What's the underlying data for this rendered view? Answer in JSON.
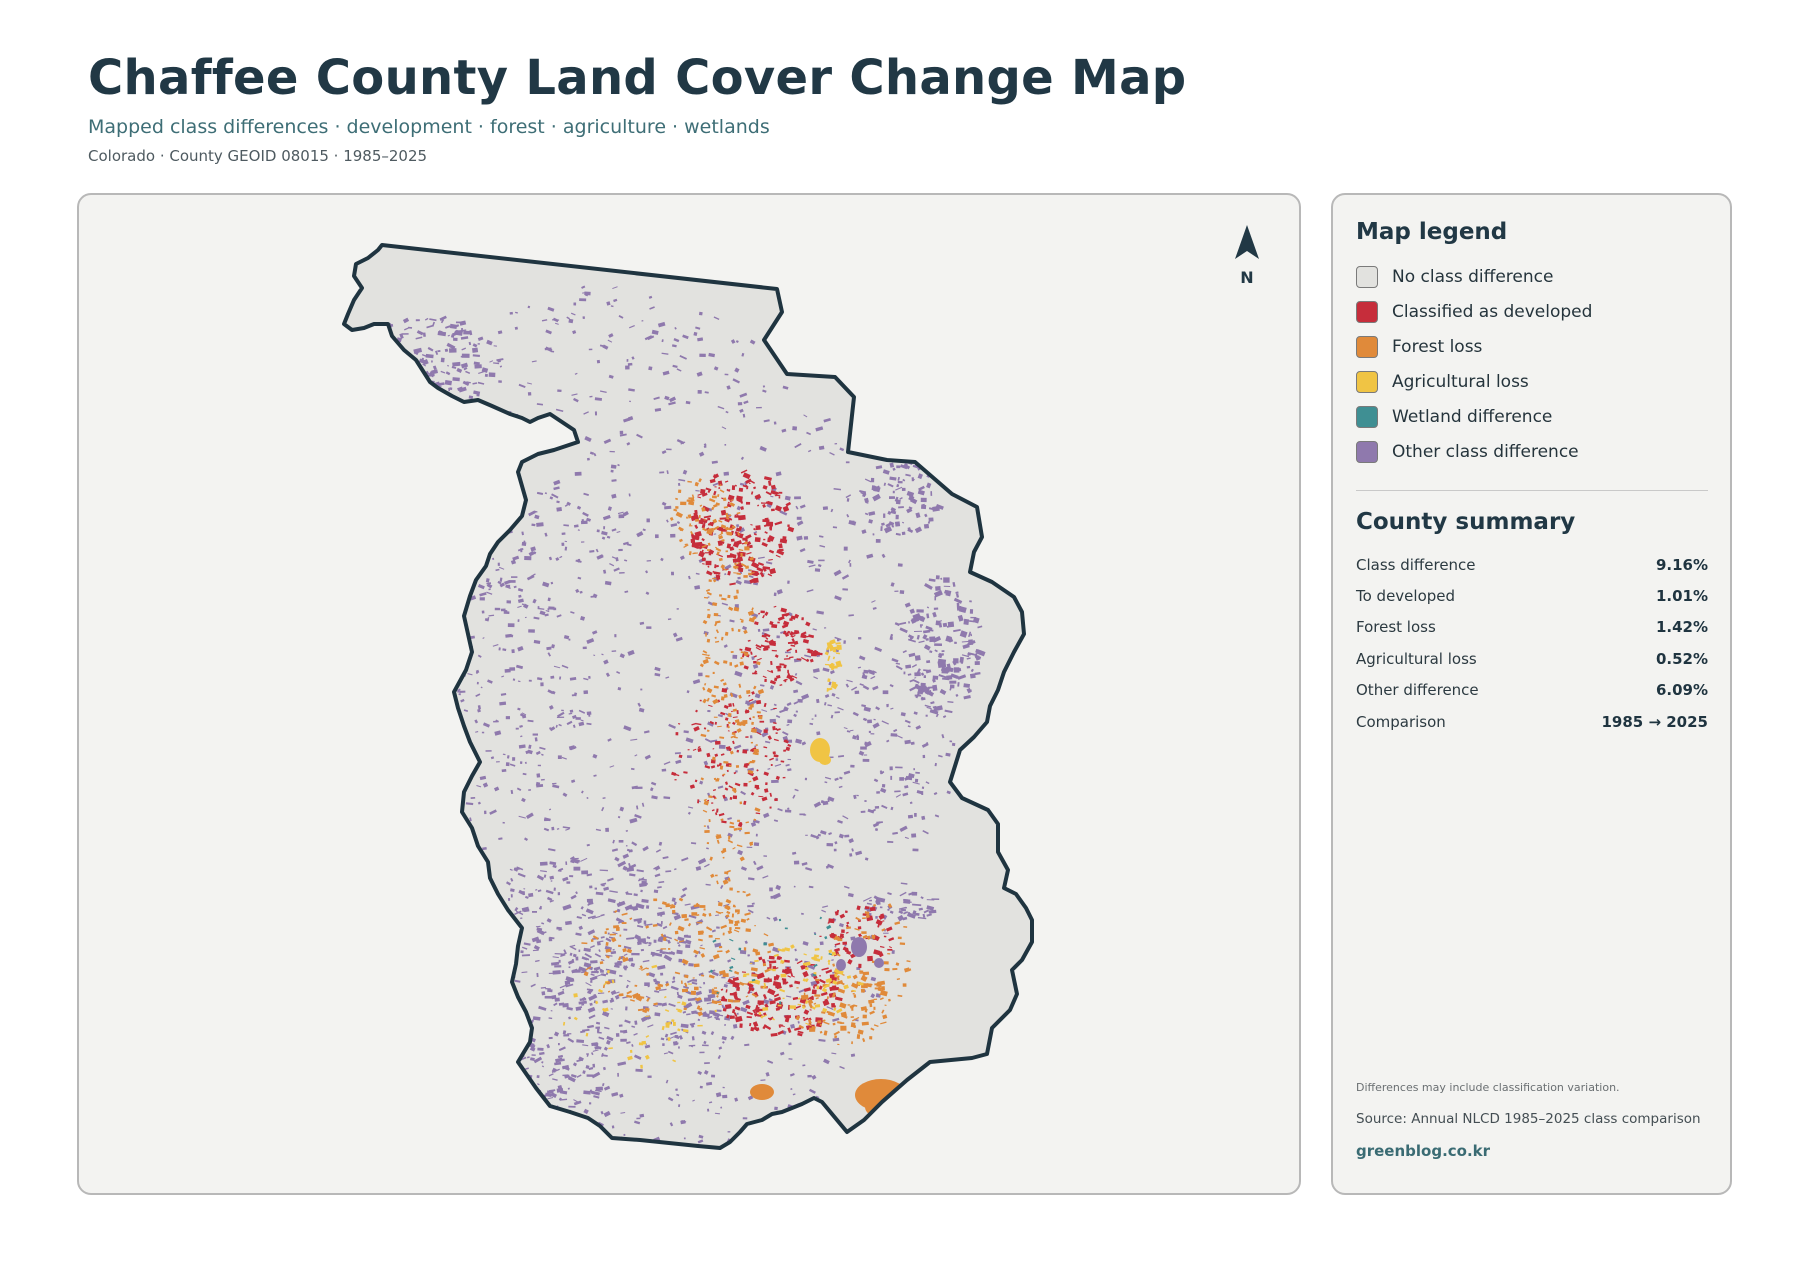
{
  "header": {
    "title": "Chaffee County Land Cover Change Map",
    "subtitle": "Mapped class differences · development · forest · agriculture · wetlands",
    "meta": "Colorado · County GEOID 08015 · 1985–2025"
  },
  "map": {
    "north_label": "N",
    "colors": {
      "background": "#f3f3f1",
      "land": "#e2e2df",
      "outline": "#1f3440",
      "developed": "#c62d3b",
      "forest_loss": "#e08a3a",
      "agricultural_loss": "#f0c444",
      "wetland": "#3f8f93",
      "other": "#8f79ad"
    }
  },
  "legend": {
    "title": "Map legend",
    "items": [
      {
        "label": "No class difference",
        "color": "#e2e2df"
      },
      {
        "label": "Classified as developed",
        "color": "#c62d3b"
      },
      {
        "label": "Forest loss",
        "color": "#e08a3a"
      },
      {
        "label": "Agricultural loss",
        "color": "#f0c444"
      },
      {
        "label": "Wetland difference",
        "color": "#3f8f93"
      },
      {
        "label": "Other class difference",
        "color": "#8f79ad"
      }
    ]
  },
  "summary": {
    "title": "County summary",
    "rows": [
      {
        "label": "Class difference",
        "value": "9.16%"
      },
      {
        "label": "To developed",
        "value": "1.01%"
      },
      {
        "label": "Forest loss",
        "value": "1.42%"
      },
      {
        "label": "Agricultural loss",
        "value": "0.52%"
      },
      {
        "label": "Other difference",
        "value": "6.09%"
      },
      {
        "label": "Comparison",
        "value": "1985 → 2025"
      }
    ]
  },
  "footer": {
    "note": "Differences may include classification variation.",
    "source": "Source: Annual NLCD 1985–2025 class comparison",
    "site": "greenblog.co.kr"
  }
}
